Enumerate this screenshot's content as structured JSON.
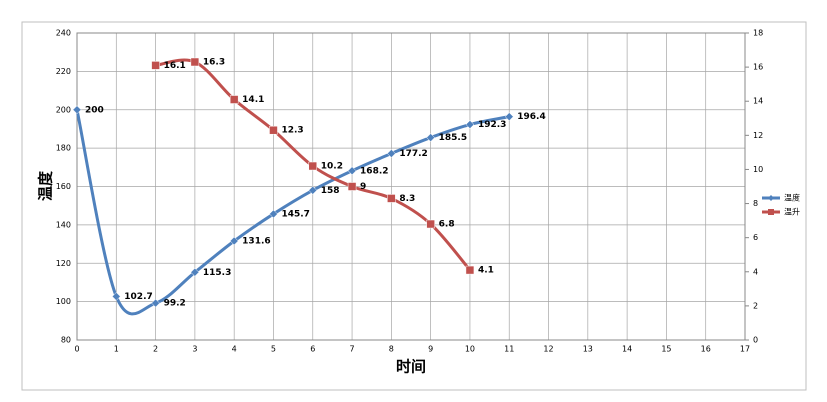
{
  "chart_data": {
    "type": "line",
    "x_label": "时间",
    "y_label": "温度",
    "xlim": [
      0,
      17
    ],
    "xticks": [
      0,
      1,
      2,
      3,
      4,
      5,
      6,
      7,
      8,
      9,
      10,
      11,
      12,
      13,
      14,
      15,
      16,
      17
    ],
    "ylim": [
      80,
      240
    ],
    "yticks": [
      80,
      100,
      120,
      140,
      160,
      180,
      200,
      220,
      240
    ],
    "y2lim": [
      0,
      18
    ],
    "y2ticks": [
      0,
      2,
      4,
      6,
      8,
      10,
      12,
      14,
      16,
      18
    ],
    "grid": true,
    "legend": "right",
    "smooth": true,
    "series": [
      {
        "name": "温度",
        "color": "#4f81bd",
        "marker": "diamond",
        "x": [
          0,
          1,
          2,
          3,
          4,
          5,
          6,
          7,
          8,
          9,
          10,
          11
        ],
        "values": [
          200,
          102.7,
          99.2,
          115.3,
          131.6,
          145.7,
          158,
          168.2,
          177.2,
          185.5,
          192.3,
          196.4
        ]
      },
      {
        "name": "温升",
        "color": "#c0504d",
        "marker": "square",
        "axis": "y2",
        "x": [
          2,
          3,
          4,
          5,
          6,
          7,
          8,
          9,
          10
        ],
        "values": [
          16.1,
          16.3,
          14.1,
          12.3,
          10.2,
          9,
          8.3,
          6.8,
          4.1
        ]
      }
    ]
  }
}
